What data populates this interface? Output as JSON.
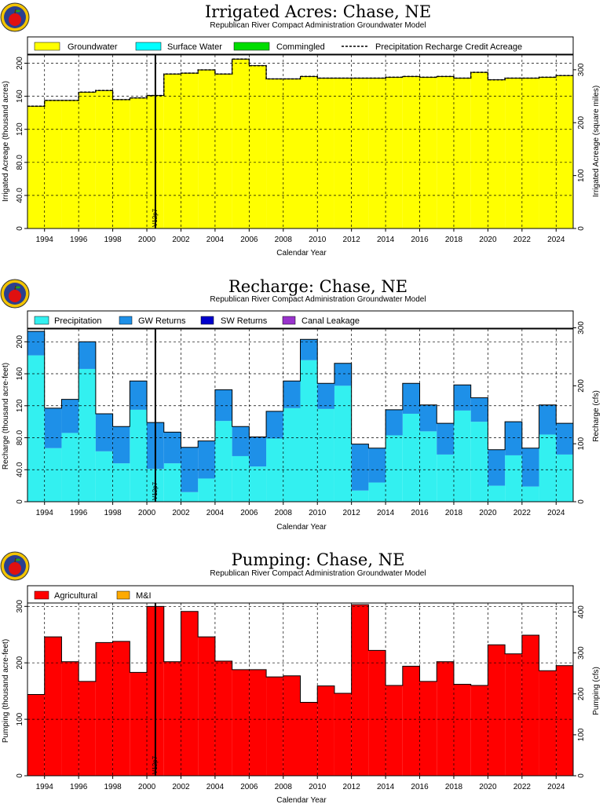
{
  "figure": {
    "subtitle": "Republican River Compact Administration Groundwater Model",
    "xlabel": "Calendar Year",
    "vertical_marker": {
      "year": 2000.5,
      "label": "V12p7"
    },
    "x_ticks": [
      1994,
      1996,
      1998,
      2000,
      2002,
      2004,
      2006,
      2008,
      2010,
      2012,
      2014,
      2016,
      2018,
      2020,
      2022,
      2024
    ],
    "xlim": [
      1993,
      2025
    ],
    "colors": {
      "groundwater": "#ffff00",
      "surface_water": "#00ffff",
      "commingled": "#00dd00",
      "precipitation": "#33f0f0",
      "gw_returns": "#1e90e8",
      "sw_returns": "#0000cc",
      "canal_leakage": "#9933cc",
      "agricultural": "#ff0000",
      "mandi": "#ffaa00"
    },
    "logo_icon": "apple-logo-icon"
  },
  "chart_data": [
    {
      "id": "acres",
      "type": "area",
      "title": "Irrigated Acres: Chase, NE",
      "ylabel": "Irrigated Acreage (thousand acres)",
      "ylabel_right": "Irrigated Acreage (square miles)",
      "ylim": [
        0,
        210
      ],
      "yticks": [
        0,
        40.0,
        80.0,
        120,
        160,
        200
      ],
      "ytick_labels": [
        "0",
        "40.0",
        "80.0",
        "120",
        "160",
        "200"
      ],
      "ylim_right": [
        0,
        328
      ],
      "yticks_right": [
        0,
        100,
        200,
        300
      ],
      "grid": true,
      "legend_position": "top",
      "x": [
        1993,
        1994,
        1995,
        1996,
        1997,
        1998,
        1999,
        2000,
        2001,
        2002,
        2003,
        2004,
        2005,
        2006,
        2007,
        2008,
        2009,
        2010,
        2011,
        2012,
        2013,
        2014,
        2015,
        2016,
        2017,
        2018,
        2019,
        2020,
        2021,
        2022,
        2023,
        2024
      ],
      "series": [
        {
          "name": "Groundwater",
          "color_key": "groundwater",
          "values": [
            148,
            155,
            155,
            165,
            167,
            156,
            158,
            161,
            187,
            188,
            192,
            187,
            205,
            197,
            181,
            181,
            184,
            182,
            182,
            182,
            182,
            183,
            184,
            183,
            184,
            182,
            189,
            180,
            182,
            182,
            183,
            185
          ]
        },
        {
          "name": "Surface Water",
          "color_key": "surface_water",
          "values": [
            0,
            0,
            0,
            0,
            0,
            0,
            0,
            0,
            0,
            0,
            0,
            0,
            0,
            0,
            0,
            0,
            0,
            0,
            0,
            0,
            0,
            0,
            0,
            0,
            0,
            0,
            0,
            0,
            0,
            0,
            0,
            0
          ]
        },
        {
          "name": "Commingled",
          "color_key": "commingled",
          "values": [
            0,
            0,
            0,
            0,
            0,
            0,
            0,
            0,
            0,
            0,
            0,
            0,
            0,
            0,
            0,
            0,
            0,
            0,
            0,
            0,
            0,
            0,
            0,
            0,
            0,
            0,
            0,
            0,
            0,
            0,
            0,
            0
          ]
        }
      ],
      "line_series": {
        "name": "Precipitation Recharge Credit Acreage",
        "values": [
          148,
          155,
          155,
          165,
          167,
          156,
          158,
          161,
          187,
          188,
          192,
          187,
          205,
          197,
          181,
          181,
          184,
          182,
          182,
          182,
          182,
          183,
          184,
          183,
          184,
          182,
          189,
          180,
          182,
          182,
          183,
          185
        ]
      }
    },
    {
      "id": "recharge",
      "type": "area",
      "title": "Recharge: Chase, NE",
      "ylabel": "Recharge (thousand acre-feet)",
      "ylabel_right": "Recharge (cfs)",
      "ylim": [
        0,
        216
      ],
      "yticks": [
        0,
        40.0,
        80.0,
        120,
        160,
        200
      ],
      "ytick_labels": [
        "0",
        "40.0",
        "80.0",
        "120",
        "160",
        "200"
      ],
      "ylim_right": [
        0,
        298
      ],
      "yticks_right": [
        0,
        100,
        200,
        300
      ],
      "grid": true,
      "legend_position": "top",
      "x": [
        1993,
        1994,
        1995,
        1996,
        1997,
        1998,
        1999,
        2000,
        2001,
        2002,
        2003,
        2004,
        2005,
        2006,
        2007,
        2008,
        2009,
        2010,
        2011,
        2012,
        2013,
        2014,
        2015,
        2016,
        2017,
        2018,
        2019,
        2020,
        2021,
        2022,
        2023,
        2024
      ],
      "series": [
        {
          "name": "Precipitation",
          "color_key": "precipitation",
          "values": [
            183,
            67,
            86,
            166,
            63,
            48,
            115,
            41,
            48,
            12,
            29,
            101,
            57,
            44,
            79,
            117,
            177,
            116,
            145,
            14,
            24,
            83,
            110,
            88,
            59,
            114,
            100,
            20,
            58,
            19,
            84,
            59
          ]
        },
        {
          "name": "GW Returns",
          "color_key": "gw_returns",
          "values": [
            30,
            50,
            42,
            34,
            47,
            46,
            36,
            58,
            39,
            56,
            47,
            39,
            37,
            37,
            34,
            34,
            26,
            32,
            28,
            58,
            43,
            32,
            38,
            33,
            39,
            32,
            30,
            45,
            42,
            48,
            37,
            39
          ]
        },
        {
          "name": "SW Returns",
          "color_key": "sw_returns",
          "values": [
            0,
            0,
            0,
            0,
            0,
            0,
            0,
            0,
            0,
            0,
            0,
            0,
            0,
            0,
            0,
            0,
            0,
            0,
            0,
            0,
            0,
            0,
            0,
            0,
            0,
            0,
            0,
            0,
            0,
            0,
            0,
            0
          ]
        },
        {
          "name": "Canal Leakage",
          "color_key": "canal_leakage",
          "values": [
            0,
            0,
            0,
            0,
            0,
            0,
            0,
            0,
            0,
            0,
            0,
            0,
            0,
            0,
            0,
            0,
            0,
            0,
            0,
            0,
            0,
            0,
            0,
            0,
            0,
            0,
            0,
            0,
            0,
            0,
            0,
            0
          ]
        }
      ]
    },
    {
      "id": "pumping",
      "type": "area",
      "title": "Pumping: Chase, NE",
      "ylabel": "Pumping (thousand acre-feet)",
      "ylabel_right": "Pumping (cfs)",
      "ylim": [
        0,
        306
      ],
      "yticks": [
        0,
        100,
        200,
        300
      ],
      "ytick_labels": [
        "0",
        "100",
        "200",
        "300"
      ],
      "ylim_right": [
        0,
        422
      ],
      "yticks_right": [
        0,
        100,
        200,
        300,
        400
      ],
      "grid": true,
      "legend_position": "top",
      "x": [
        1993,
        1994,
        1995,
        1996,
        1997,
        1998,
        1999,
        2000,
        2001,
        2002,
        2003,
        2004,
        2005,
        2006,
        2007,
        2008,
        2009,
        2010,
        2011,
        2012,
        2013,
        2014,
        2015,
        2016,
        2017,
        2018,
        2019,
        2020,
        2021,
        2022,
        2023,
        2024
      ],
      "series": [
        {
          "name": "Agricultural",
          "color_key": "agricultural",
          "values": [
            144,
            246,
            202,
            167,
            236,
            238,
            183,
            300,
            202,
            291,
            246,
            203,
            188,
            188,
            175,
            177,
            130,
            159,
            146,
            303,
            222,
            160,
            194,
            167,
            202,
            162,
            160,
            232,
            216,
            249,
            186,
            195
          ]
        },
        {
          "name": "M&I",
          "color_key": "mandi",
          "values": [
            0,
            0,
            0,
            0,
            0,
            0,
            0,
            0,
            0,
            0,
            0,
            0,
            0,
            0,
            0,
            0,
            0,
            0,
            0,
            0,
            0,
            0,
            0,
            0,
            0,
            0,
            0,
            0,
            0,
            0,
            0,
            0
          ]
        }
      ]
    }
  ]
}
